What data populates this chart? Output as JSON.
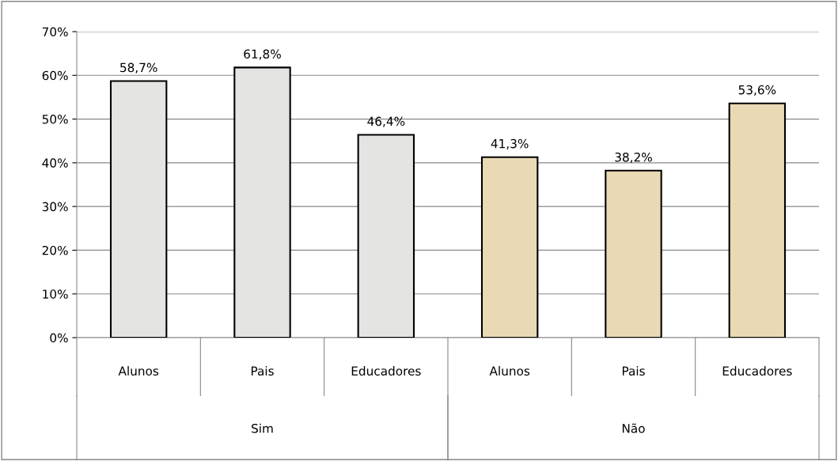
{
  "chart_data": {
    "type": "bar",
    "categories": [
      "Alunos",
      "Pais",
      "Educadores",
      "Alunos",
      "Pais",
      "Educadores"
    ],
    "values": [
      58.7,
      61.8,
      46.4,
      41.3,
      38.2,
      53.6
    ],
    "value_labels": [
      "58,7%",
      "61,8%",
      "46,4%",
      "41,3%",
      "38,2%",
      "53,6%"
    ],
    "colors": [
      "#e4e4e2",
      "#e4e4e2",
      "#e4e4e2",
      "#ead9b5",
      "#ead9b5",
      "#ead9b5"
    ],
    "annotations": [
      "Sim",
      "Não"
    ],
    "ylim": [
      0,
      70
    ],
    "yticks": [
      {
        "value": 0,
        "label": "0%"
      },
      {
        "value": 10,
        "label": "10%"
      },
      {
        "value": 20,
        "label": "20%"
      },
      {
        "value": 30,
        "label": "30%"
      },
      {
        "value": 40,
        "label": "40%"
      },
      {
        "value": 50,
        "label": "50%"
      },
      {
        "value": 60,
        "label": "60%"
      },
      {
        "value": 70,
        "label": "70%"
      }
    ],
    "grid": "y"
  }
}
